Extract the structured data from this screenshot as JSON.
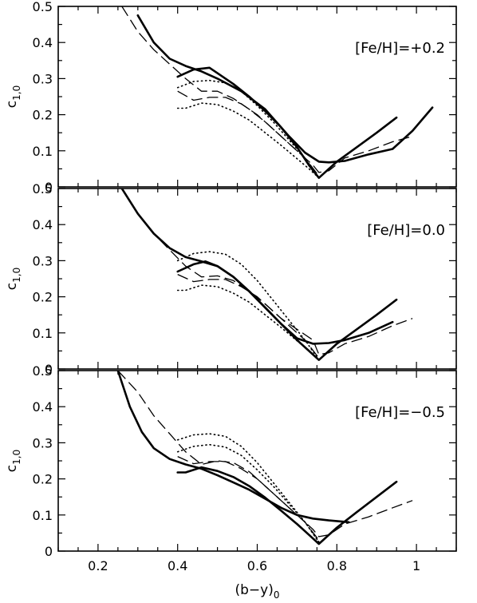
{
  "chart_data": {
    "type": "line",
    "xlabel": "(b−y)",
    "xlabel_sub": "0",
    "xlim": [
      0.1,
      1.1
    ],
    "xticks": [
      "0.2",
      "0.4",
      "0.6",
      "0.8",
      "1"
    ],
    "xtick_values": [
      0.2,
      0.4,
      0.6,
      0.8,
      1.0
    ],
    "panels": [
      {
        "annotation": "[Fe/H]=+0.2",
        "ylabel": "c",
        "ylabel_sub": "1,0",
        "ylim": [
          0,
          0.5
        ],
        "yticks": [
          "0",
          "0.1",
          "0.2",
          "0.3",
          "0.4",
          "0.5"
        ],
        "ytick_values": [
          0,
          0.1,
          0.2,
          0.3,
          0.4,
          0.5
        ],
        "series": [
          {
            "style": "solid-thick",
            "x": [
              0.3,
              0.34,
              0.38,
              0.42,
              0.46,
              0.5,
              0.56,
              0.62,
              0.68,
              0.72,
              0.755,
              0.78,
              0.82,
              0.88,
              0.94,
              0.99,
              1.04
            ],
            "y": [
              0.475,
              0.4,
              0.355,
              0.335,
              0.32,
              0.3,
              0.265,
              0.215,
              0.14,
              0.095,
              0.07,
              0.068,
              0.072,
              0.09,
              0.105,
              0.155,
              0.22
            ]
          },
          {
            "style": "solid-thick",
            "x": [
              0.4,
              0.44,
              0.48,
              0.5,
              0.54,
              0.58,
              0.62,
              0.66,
              0.7,
              0.73,
              0.755,
              0.8,
              0.85,
              0.9,
              0.95
            ],
            "y": [
              0.305,
              0.325,
              0.33,
              0.315,
              0.285,
              0.25,
              0.21,
              0.165,
              0.11,
              0.06,
              0.025,
              0.07,
              0.11,
              0.15,
              0.192
            ]
          },
          {
            "style": "dashed",
            "x": [
              0.26,
              0.3,
              0.34,
              0.38,
              0.42,
              0.46,
              0.5,
              0.54,
              0.58,
              0.62,
              0.66,
              0.7,
              0.74,
              0.755,
              0.78,
              0.82,
              0.88,
              0.94,
              0.99
            ],
            "y": [
              0.5,
              0.43,
              0.38,
              0.34,
              0.3,
              0.265,
              0.265,
              0.245,
              0.215,
              0.18,
              0.14,
              0.1,
              0.06,
              0.04,
              0.045,
              0.08,
              0.1,
              0.125,
              0.14
            ]
          },
          {
            "style": "dashed",
            "x": [
              0.4,
              0.44,
              0.48,
              0.52,
              0.56,
              0.6,
              0.64,
              0.68,
              0.72,
              0.755
            ],
            "y": [
              0.265,
              0.24,
              0.248,
              0.248,
              0.23,
              0.2,
              0.16,
              0.12,
              0.08,
              0.03
            ]
          },
          {
            "style": "dotted",
            "x": [
              0.4,
              0.44,
              0.48,
              0.52,
              0.56,
              0.6,
              0.64,
              0.68,
              0.72,
              0.755
            ],
            "y": [
              0.275,
              0.292,
              0.295,
              0.288,
              0.265,
              0.225,
              0.18,
              0.13,
              0.08,
              0.025
            ]
          },
          {
            "style": "dotted",
            "x": [
              0.4,
              0.42,
              0.46,
              0.5,
              0.54,
              0.58,
              0.62,
              0.66,
              0.7,
              0.73,
              0.755
            ],
            "y": [
              0.218,
              0.218,
              0.232,
              0.228,
              0.21,
              0.185,
              0.15,
              0.115,
              0.078,
              0.05,
              0.025
            ]
          }
        ]
      },
      {
        "annotation": "[Fe/H]=0.0",
        "ylabel": "c",
        "ylabel_sub": "1,0",
        "ylim": [
          0,
          0.5
        ],
        "yticks": [
          "0",
          "0.1",
          "0.2",
          "0.3",
          "0.4",
          "0.5"
        ],
        "ytick_values": [
          0,
          0.1,
          0.2,
          0.3,
          0.4,
          0.5
        ],
        "series": [
          {
            "style": "solid-thick",
            "x": [
              0.26,
              0.3,
              0.34,
              0.38,
              0.42,
              0.46,
              0.5,
              0.54,
              0.58,
              0.62,
              0.66,
              0.7,
              0.74,
              0.78,
              0.82,
              0.88,
              0.94
            ],
            "y": [
              0.5,
              0.43,
              0.375,
              0.335,
              0.31,
              0.298,
              0.285,
              0.255,
              0.215,
              0.17,
              0.125,
              0.085,
              0.07,
              0.072,
              0.08,
              0.1,
              0.13
            ]
          },
          {
            "style": "solid-thick",
            "x": [
              0.4,
              0.44,
              0.47,
              0.5,
              0.54,
              0.58,
              0.62,
              0.66,
              0.7,
              0.73,
              0.755,
              0.8,
              0.85,
              0.9,
              0.95
            ],
            "y": [
              0.27,
              0.29,
              0.298,
              0.285,
              0.255,
              0.215,
              0.17,
              0.125,
              0.08,
              0.05,
              0.025,
              0.07,
              0.11,
              0.15,
              0.192
            ]
          },
          {
            "style": "dashed",
            "x": [
              0.26,
              0.3,
              0.34,
              0.38,
              0.42,
              0.46,
              0.5,
              0.54,
              0.58,
              0.62,
              0.66,
              0.7,
              0.74,
              0.755,
              0.78,
              0.82,
              0.88,
              0.94,
              0.99
            ],
            "y": [
              0.5,
              0.43,
              0.375,
              0.33,
              0.285,
              0.255,
              0.258,
              0.245,
              0.215,
              0.18,
              0.14,
              0.11,
              0.08,
              0.04,
              0.045,
              0.07,
              0.09,
              0.12,
              0.14
            ]
          },
          {
            "style": "dashed",
            "x": [
              0.4,
              0.44,
              0.48,
              0.52,
              0.56,
              0.6,
              0.64,
              0.68,
              0.72,
              0.755
            ],
            "y": [
              0.262,
              0.242,
              0.248,
              0.248,
              0.228,
              0.2,
              0.16,
              0.12,
              0.08,
              0.03
            ]
          },
          {
            "style": "dotted",
            "x": [
              0.4,
              0.44,
              0.48,
              0.52,
              0.56,
              0.6,
              0.64,
              0.68,
              0.72,
              0.755
            ],
            "y": [
              0.3,
              0.32,
              0.325,
              0.318,
              0.29,
              0.245,
              0.19,
              0.135,
              0.08,
              0.025
            ]
          },
          {
            "style": "dotted",
            "x": [
              0.4,
              0.42,
              0.46,
              0.5,
              0.54,
              0.58,
              0.62,
              0.66,
              0.7,
              0.73,
              0.755
            ],
            "y": [
              0.218,
              0.218,
              0.232,
              0.228,
              0.21,
              0.185,
              0.15,
              0.115,
              0.078,
              0.05,
              0.025
            ]
          }
        ]
      },
      {
        "annotation": "[Fe/H]=−0.5",
        "ylabel": "c",
        "ylabel_sub": "1,0",
        "ylim": [
          0,
          0.5
        ],
        "yticks": [
          "0",
          "0.1",
          "0.2",
          "0.3",
          "0.4",
          "0.5"
        ],
        "ytick_values": [
          0,
          0.1,
          0.2,
          0.3,
          0.4,
          0.5
        ],
        "series": [
          {
            "style": "solid-thick",
            "x": [
              0.25,
              0.28,
              0.31,
              0.34,
              0.38,
              0.42,
              0.46,
              0.5,
              0.54,
              0.58,
              0.62,
              0.66,
              0.7,
              0.74,
              0.78,
              0.83
            ],
            "y": [
              0.5,
              0.4,
              0.33,
              0.285,
              0.255,
              0.24,
              0.228,
              0.21,
              0.19,
              0.17,
              0.145,
              0.12,
              0.1,
              0.09,
              0.085,
              0.08
            ]
          },
          {
            "style": "solid-thick",
            "x": [
              0.4,
              0.42,
              0.46,
              0.5,
              0.54,
              0.58,
              0.62,
              0.66,
              0.7,
              0.73,
              0.755,
              0.8,
              0.85,
              0.9,
              0.95
            ],
            "y": [
              0.218,
              0.218,
              0.232,
              0.222,
              0.205,
              0.18,
              0.148,
              0.112,
              0.075,
              0.045,
              0.02,
              0.065,
              0.108,
              0.15,
              0.192
            ]
          },
          {
            "style": "dashed",
            "x": [
              0.25,
              0.3,
              0.34,
              0.38,
              0.42,
              0.46,
              0.5,
              0.54,
              0.58,
              0.62,
              0.66,
              0.7,
              0.74,
              0.755,
              0.78,
              0.82,
              0.88,
              0.94,
              0.99
            ],
            "y": [
              0.5,
              0.44,
              0.375,
              0.325,
              0.275,
              0.24,
              0.25,
              0.245,
              0.22,
              0.18,
              0.14,
              0.1,
              0.06,
              0.04,
              0.045,
              0.075,
              0.095,
              0.12,
              0.14
            ]
          },
          {
            "style": "dashed",
            "x": [
              0.4,
              0.44,
              0.48,
              0.52,
              0.56,
              0.6,
              0.64,
              0.68,
              0.72,
              0.755
            ],
            "y": [
              0.262,
              0.242,
              0.248,
              0.248,
              0.228,
              0.2,
              0.16,
              0.12,
              0.08,
              0.03
            ]
          },
          {
            "style": "dotted",
            "x": [
              0.4,
              0.44,
              0.48,
              0.52,
              0.56,
              0.6,
              0.64,
              0.68,
              0.72,
              0.755
            ],
            "y": [
              0.308,
              0.322,
              0.325,
              0.318,
              0.29,
              0.245,
              0.19,
              0.135,
              0.08,
              0.025
            ]
          },
          {
            "style": "dotted",
            "x": [
              0.4,
              0.44,
              0.48,
              0.52,
              0.56,
              0.6,
              0.64,
              0.68,
              0.72,
              0.755
            ],
            "y": [
              0.275,
              0.29,
              0.295,
              0.288,
              0.265,
              0.225,
              0.18,
              0.13,
              0.08,
              0.025
            ]
          }
        ]
      }
    ]
  }
}
